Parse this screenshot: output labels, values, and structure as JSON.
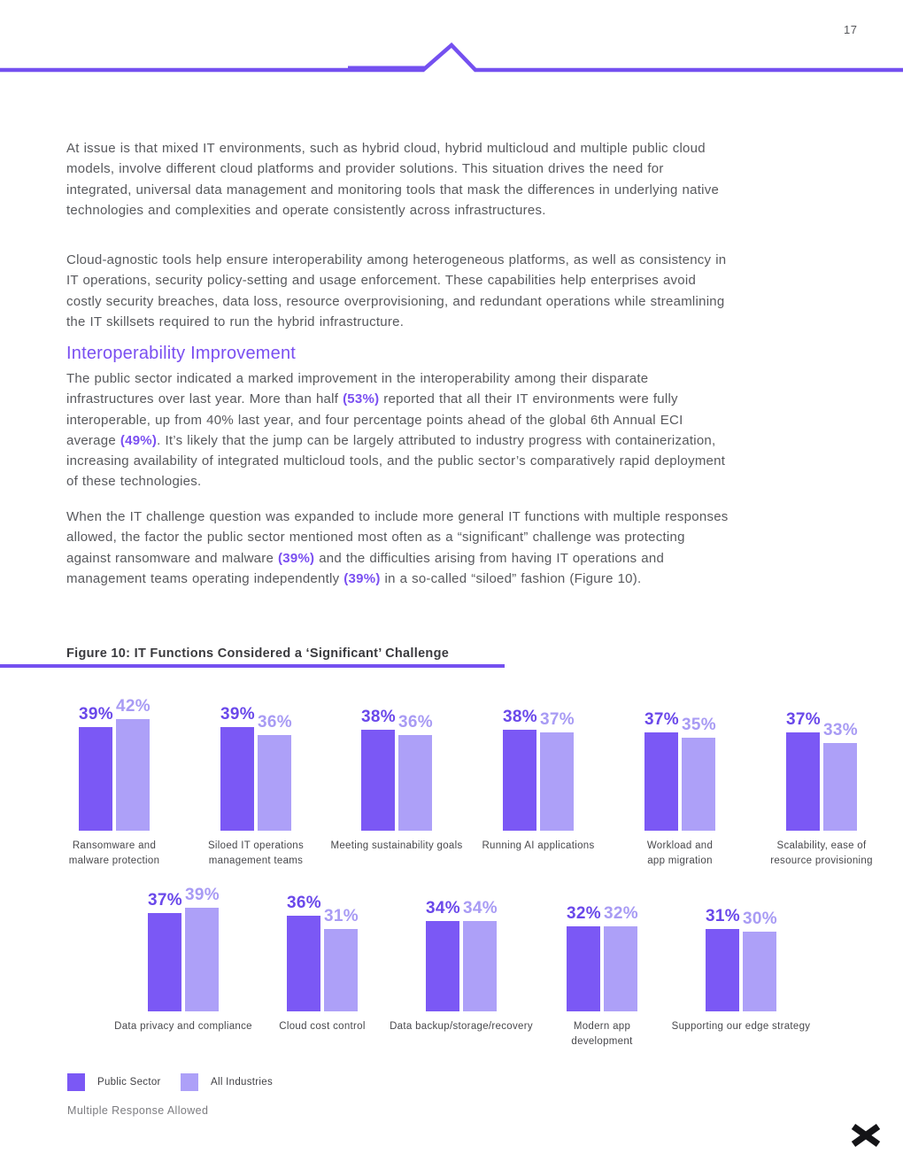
{
  "page": {
    "number": "17"
  },
  "colors": {
    "accent_line": "#7450f0",
    "heading": "#7a4ff1",
    "highlight": "#7a4ff1",
    "body_text": "#58595d",
    "bar_public_sector": "#7b58f5",
    "bar_all_industries": "#ada0f8",
    "value_label_public_sector": "#6a48ea",
    "value_label_all_industries": "#a89bf4"
  },
  "content": {
    "p1": "At issue is that mixed IT environments, such as hybrid cloud, hybrid multicloud and multiple public cloud models, involve different cloud platforms and provider solutions. This situation drives the need for integrated, universal data management and monitoring tools that mask the differences in underlying native technologies and complexities and operate consistently across infrastructures.",
    "p2": "Cloud-agnostic tools help ensure interoperability among heterogeneous platforms, as well as consistency in IT operations, security policy-setting and usage enforcement. These capabilities help enterprises avoid costly security breaches, data loss, resource overprovisioning, and redundant operations while streamlining the IT skillsets required to run the hybrid infrastructure.",
    "heading": "Interoperability Improvement",
    "p3_segments": [
      "The public sector indicated a marked improvement in the interoperability among their disparate infrastructures over last year. More than half ",
      "(53%)",
      " reported that all their IT environments were fully interoperable, up from 40% last year, and four percentage points ahead of the global 6th Annual ECI average ",
      "(49%)",
      ". It’s likely that the jump can be largely attributed to industry progress with containerization, increasing availability of integrated multicloud tools, and the public sector’s comparatively rapid deployment of these technologies."
    ],
    "p4_segments": [
      "When the IT challenge question was expanded to include more general IT functions with multiple responses allowed, the factor the public sector mentioned most often as a “significant” challenge was protecting against ransomware and malware ",
      "(39%)",
      " and the difficulties arising from having IT operations and management teams operating independently ",
      "(39%)",
      " in a so-called “siloed” fashion (Figure 10)."
    ]
  },
  "figure": {
    "caption": "Figure 10: IT Functions Considered a ‘Significant’ Challenge"
  },
  "chart_data": {
    "type": "bar",
    "title": "Figure 10: IT Functions Considered a ‘Significant’ Challenge",
    "unit": "%",
    "ylim": [
      0,
      45
    ],
    "grid": false,
    "legend_position": "bottom-left",
    "note": "Multiple Response Allowed",
    "categories": [
      "Ransomware and malware protection",
      "Siloed IT operations management teams",
      "Meeting sustainability goals",
      "Running AI applications",
      "Workload and app migration",
      "Scalability, ease of resource provisioning",
      "Data privacy and compliance",
      "Cloud cost control",
      "Data backup/storage/recovery",
      "Modern app development",
      "Supporting our edge strategy"
    ],
    "category_lines": [
      [
        "Ransomware and",
        "malware protection"
      ],
      [
        "Siloed IT operations",
        "management teams"
      ],
      [
        "Meeting sustainability goals"
      ],
      [
        "Running AI applications"
      ],
      [
        "Workload and",
        "app migration"
      ],
      [
        "Scalability, ease of",
        "resource provisioning"
      ],
      [
        "Data privacy and compliance"
      ],
      [
        "Cloud cost control"
      ],
      [
        "Data backup/storage/recovery"
      ],
      [
        "Modern app",
        "development"
      ],
      [
        "Supporting our edge strategy"
      ]
    ],
    "series": [
      {
        "name": "Public Sector",
        "color": "#7b58f5",
        "value_label_color": "#6a48ea",
        "values": [
          39,
          39,
          38,
          38,
          37,
          37,
          37,
          36,
          34,
          32,
          31
        ]
      },
      {
        "name": "All Industries",
        "color": "#ada0f8",
        "value_label_color": "#a89bf4",
        "values": [
          42,
          36,
          36,
          37,
          35,
          33,
          39,
          31,
          34,
          32,
          30
        ]
      }
    ]
  },
  "footnote": "Multiple Response Allowed"
}
